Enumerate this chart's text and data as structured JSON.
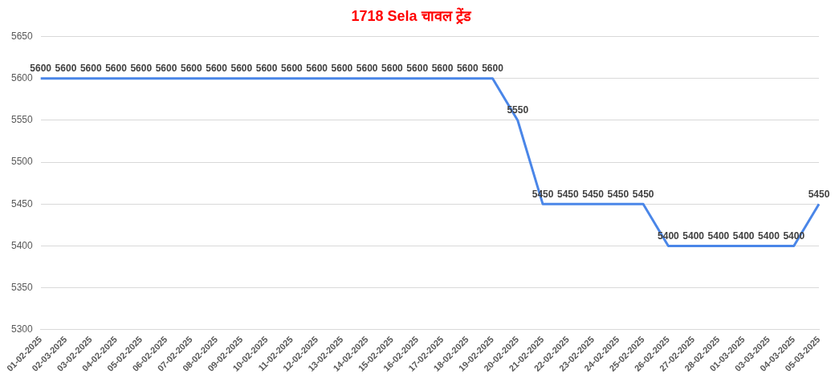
{
  "chart_data": {
    "type": "line",
    "title": "1718 Sela चावल ट्रेंड",
    "categories": [
      "01-02-2025",
      "02-03-2025",
      "03-02-2025",
      "04-02-2025",
      "05-02-2025",
      "06-02-2025",
      "07-02-2025",
      "08-02-2025",
      "09-02-2025",
      "10-02-2025",
      "11-02-2025",
      "12-02-2025",
      "13-02-2025",
      "14-02-2025",
      "15-02-2025",
      "16-02-2025",
      "17-02-2025",
      "18-02-2025",
      "19-02-2025",
      "20-02-2025",
      "21-02-2025",
      "22-02-2025",
      "23-02-2025",
      "24-02-2025",
      "25-02-2025",
      "26-02-2025",
      "27-02-2025",
      "28-02-2025",
      "01-03-2025",
      "03-03-2025",
      "04-03-2025",
      "05-03-2025"
    ],
    "series": [
      {
        "color": "#4a86e8",
        "values": [
          5600,
          5600,
          5600,
          5600,
          5600,
          5600,
          5600,
          5600,
          5600,
          5600,
          5600,
          5600,
          5600,
          5600,
          5600,
          5600,
          5600,
          5600,
          5600,
          5550,
          5450,
          5450,
          5450,
          5450,
          5450,
          5400,
          5400,
          5400,
          5400,
          5400,
          5400,
          5450
        ]
      }
    ],
    "ylim": [
      5300,
      5650
    ],
    "yticks": [
      5300,
      5350,
      5400,
      5450,
      5500,
      5550,
      5600,
      5650
    ],
    "grid": "y",
    "marker": "none",
    "data_labels": true,
    "legend": false
  }
}
